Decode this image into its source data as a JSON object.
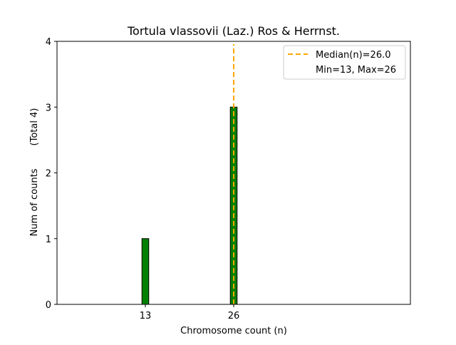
{
  "chart_data": {
    "type": "bar",
    "title": "Tortula vlassovii (Laz.) Ros & Herrnst.",
    "xlabel": "Chromosome count (n)",
    "ylabel": "Num of counts",
    "ylabel_note": "(Total 4)",
    "xlim": [
      0,
      52
    ],
    "ylim": [
      0,
      4
    ],
    "x_ticks": [
      13,
      26
    ],
    "y_ticks": [
      0,
      1,
      2,
      3,
      4
    ],
    "bar_width": 1,
    "baseline_extent": [
      0,
      29.5
    ],
    "bars": [
      {
        "x": 13,
        "value": 1
      },
      {
        "x": 26,
        "value": 3
      }
    ],
    "median": 26.0,
    "legend": {
      "placement": "top-right",
      "entries": [
        "Median(n)=26.0",
        "Min=13, Max=26"
      ]
    },
    "colors": {
      "bar": "#008000",
      "bar_edge": "#000000",
      "median": "#FFA500"
    }
  }
}
